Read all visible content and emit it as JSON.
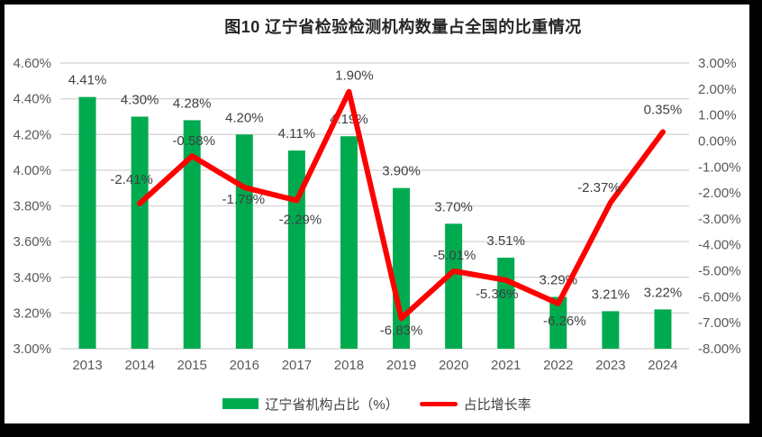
{
  "title": "图10 辽宁省检验检测机构数量占全国的比重情况",
  "legend": {
    "bar_label": "辽宁省机构占比（%）",
    "line_label": "占比增长率"
  },
  "colors": {
    "bar": "#00AB50",
    "line": "#FE0000",
    "grid": "#D9D9D9",
    "label": "#404040",
    "axis_text": "#595959",
    "frame": "#000000",
    "background": "#FFFFFF"
  },
  "chart_data": {
    "type": "bar+line",
    "title": "图10 辽宁省检验检测机构数量占全国的比重情况",
    "categories": [
      "2013",
      "2014",
      "2015",
      "2016",
      "2017",
      "2018",
      "2019",
      "2020",
      "2021",
      "2022",
      "2023",
      "2024"
    ],
    "series": [
      {
        "name": "辽宁省机构占比（%）",
        "type": "bar",
        "axis": "left",
        "values": [
          4.41,
          4.3,
          4.28,
          4.2,
          4.11,
          4.19,
          3.9,
          3.7,
          3.51,
          3.29,
          3.21,
          3.22
        ],
        "labels": [
          "4.41%",
          "4.30%",
          "4.28%",
          "4.20%",
          "4.11%",
          "4.19%",
          "3.90%",
          "3.70%",
          "3.51%",
          "3.29%",
          "3.21%",
          "3.22%"
        ]
      },
      {
        "name": "占比增长率",
        "type": "line",
        "axis": "right",
        "values": [
          null,
          -2.41,
          -0.58,
          -1.79,
          -2.29,
          1.9,
          -6.83,
          -5.01,
          -5.36,
          -6.26,
          -2.37,
          0.35
        ],
        "labels": [
          null,
          "-2.41%",
          "-0.58%",
          "-1.79%",
          "-2.29%",
          "1.90%",
          "-6.83%",
          "-5.01%",
          "-5.36%",
          "-6.26%",
          "-2.37%",
          "0.35%"
        ]
      }
    ],
    "left_axis": {
      "min": 3.0,
      "max": 4.6,
      "ticks": [
        "4.60%",
        "4.40%",
        "4.20%",
        "4.00%",
        "3.80%",
        "3.60%",
        "3.40%",
        "3.20%",
        "3.00%"
      ]
    },
    "right_axis": {
      "min": -8.0,
      "max": 3.0,
      "ticks": [
        "3.00%",
        "2.00%",
        "1.00%",
        "0.00%",
        "-1.00%",
        "-2.00%",
        "-3.00%",
        "-4.00%",
        "-5.00%",
        "-6.00%",
        "-7.00%",
        "-8.00%"
      ]
    },
    "grid": true,
    "legend_position": "bottom"
  }
}
